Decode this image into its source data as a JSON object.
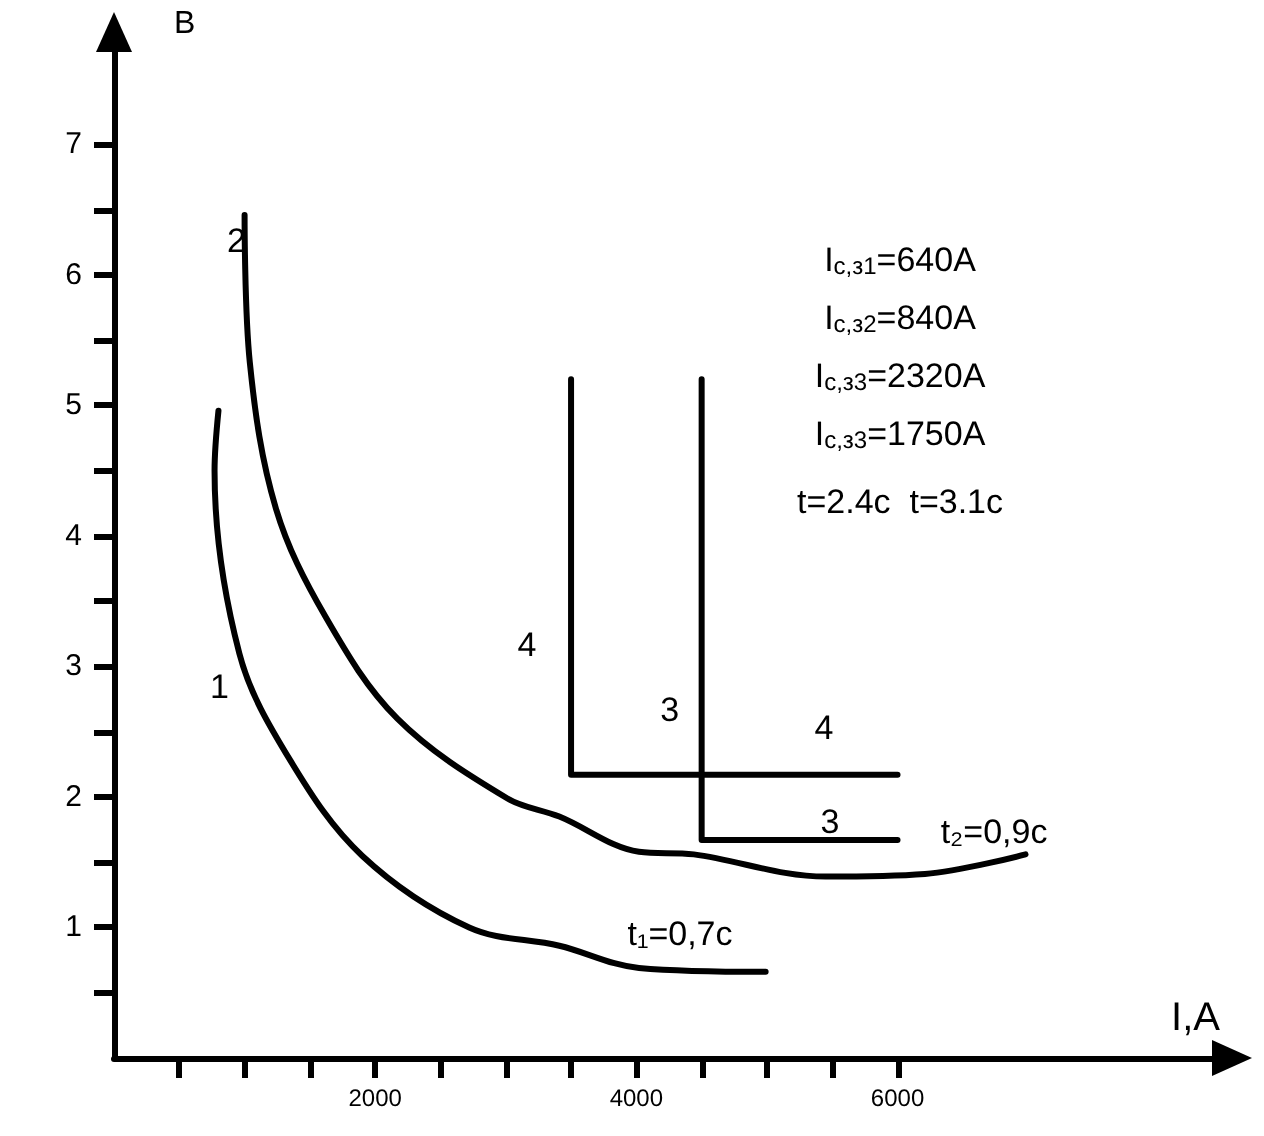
{
  "chart_data": {
    "type": "line",
    "xlabel": "I,А",
    "ylabel": "В",
    "xlim": [
      0,
      8500
    ],
    "ylim": [
      0,
      7.8
    ],
    "xticks": [
      {
        "value": 500,
        "label": null
      },
      {
        "value": 1000,
        "label": null
      },
      {
        "value": 1500,
        "label": null
      },
      {
        "value": 2000,
        "label": "2000"
      },
      {
        "value": 2500,
        "label": null
      },
      {
        "value": 3000,
        "label": null
      },
      {
        "value": 3500,
        "label": null
      },
      {
        "value": 4000,
        "label": "4000"
      },
      {
        "value": 4500,
        "label": null
      },
      {
        "value": 5000,
        "label": null
      },
      {
        "value": 5500,
        "label": null
      },
      {
        "value": 6000,
        "label": "6000"
      }
    ],
    "yticks": [
      {
        "value": 0.5,
        "label": null
      },
      1,
      {
        "value": 1.5,
        "label": null
      },
      2,
      {
        "value": 2.5,
        "label": null
      },
      3,
      {
        "value": 3.5,
        "label": null
      },
      4,
      {
        "value": 4.5,
        "label": null
      },
      5,
      {
        "value": 5.5,
        "label": null
      },
      6,
      {
        "value": 6.5,
        "label": null
      },
      7
    ],
    "series": [
      {
        "name": "1",
        "color": "#000000",
        "x": [
          800,
          770,
          960,
          1350,
          1900,
          2720,
          3410,
          4020,
          4990
        ],
        "values": [
          4.96,
          4.5,
          3.1,
          2.28,
          1.55,
          1.0,
          0.86,
          0.69,
          0.66
        ]
      },
      {
        "name": "2",
        "color": "#000000",
        "x": [
          1000,
          1040,
          1240,
          1620,
          2170,
          3010,
          3410,
          4020,
          4440,
          5450,
          6210,
          6980
        ],
        "values": [
          6.46,
          5.33,
          4.21,
          3.38,
          2.6,
          1.99,
          1.85,
          1.58,
          1.56,
          1.39,
          1.41,
          1.56
        ]
      },
      {
        "name": "4",
        "color": "#000000",
        "x": [
          3500,
          3500,
          6000
        ],
        "values": [
          5.2,
          2.17,
          2.17
        ]
      },
      {
        "name": "3",
        "color": "#000000",
        "x": [
          4500,
          4500,
          6000
        ],
        "values": [
          5.2,
          1.67,
          1.67
        ]
      }
    ],
    "annotations": [
      "4",
      "3",
      "t₁=0,7с",
      "t₂=0,9с",
      "I$_{с,з1}$=640А",
      "I$_{с,з2}$=840А",
      "I$_{с,з3}$=2320А",
      "I$_{с,з3}$=1750А",
      "t=2.4с  t=3.1с"
    ],
    "marker": "none",
    "line_style": "solid",
    "grid": false
  }
}
